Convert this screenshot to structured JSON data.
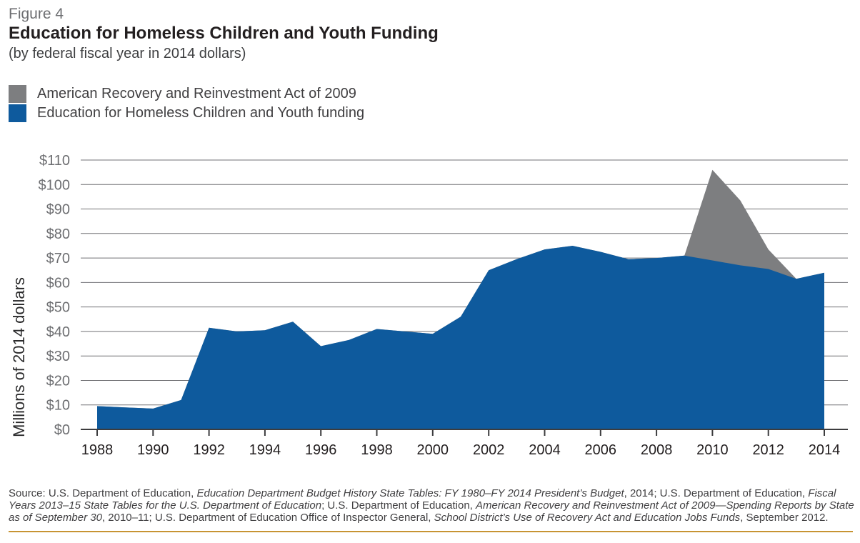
{
  "figure": {
    "label": "Figure 4",
    "title": "Education for Homeless Children and Youth Funding",
    "subtitle": "(by federal fiscal year in 2014 dollars)"
  },
  "legend": {
    "items": [
      {
        "label": "American Recovery and Reinvestment Act of 2009",
        "color": "#7d7e80"
      },
      {
        "label": "Education for Homeless Children and Youth funding",
        "color": "#0e5a9d"
      }
    ]
  },
  "chart_data": {
    "type": "area",
    "stacked": true,
    "x": [
      1988,
      1989,
      1990,
      1991,
      1992,
      1993,
      1994,
      1995,
      1996,
      1997,
      1998,
      1999,
      2000,
      2001,
      2002,
      2003,
      2004,
      2005,
      2006,
      2007,
      2008,
      2009,
      2010,
      2011,
      2012,
      2013,
      2014
    ],
    "series": [
      {
        "name": "Education for Homeless Children and Youth funding",
        "color": "#0e5a9d",
        "values": [
          9.5,
          9,
          8.5,
          12,
          41.5,
          40,
          40.5,
          44,
          34,
          36.5,
          41,
          40,
          39,
          46,
          65,
          69.5,
          73.5,
          75,
          72.5,
          69.5,
          70,
          71,
          69,
          67,
          65.5,
          61.5,
          64
        ]
      },
      {
        "name": "American Recovery and Reinvestment Act of 2009",
        "color": "#7d7e80",
        "values": [
          0,
          0,
          0,
          0,
          0,
          0,
          0,
          0,
          0,
          0,
          0,
          0,
          0,
          0,
          0,
          0,
          0,
          0,
          0,
          0,
          0,
          0,
          37,
          26.5,
          8,
          0,
          0
        ]
      }
    ],
    "ylabel": "Millions of 2014 dollars",
    "ylim": [
      0,
      110
    ],
    "ytick_step": 10,
    "ytick_prefix": "$",
    "xtick_years": [
      1988,
      1990,
      1992,
      1994,
      1996,
      1998,
      2000,
      2002,
      2004,
      2006,
      2008,
      2010,
      2012,
      2014
    ],
    "grid": true,
    "legend_position": "top-left"
  },
  "colors": {
    "gridline": "#717174",
    "axis": "#3c3c3e",
    "xtick_label": "#231f20",
    "ytick_label": "#6d6e71",
    "axis_title": "#2a2a2b",
    "bottom_rule": "#c79433"
  },
  "source": {
    "segments": [
      {
        "text": "Source: U.S. Department of Education, ",
        "italic": false
      },
      {
        "text": "Education Department Budget History State Tables: FY 1980–FY 2014 President’s Budget",
        "italic": true
      },
      {
        "text": ", 2014; U.S. Department of Education, ",
        "italic": false
      },
      {
        "text": "Fiscal Years 2013–15 State Tables for the U.S. Department of Education",
        "italic": true
      },
      {
        "text": "; U.S. Department of Education, ",
        "italic": false
      },
      {
        "text": "American Recovery and Reinvestment Act of 2009—Spending Reports by State as of September 30",
        "italic": true
      },
      {
        "text": ", 2010–11; U.S. Department of Education Office of Inspector General, ",
        "italic": false
      },
      {
        "text": "School District’s Use of Recovery Act and Education Jobs Funds",
        "italic": true
      },
      {
        "text": ", September 2012.",
        "italic": false
      }
    ]
  }
}
